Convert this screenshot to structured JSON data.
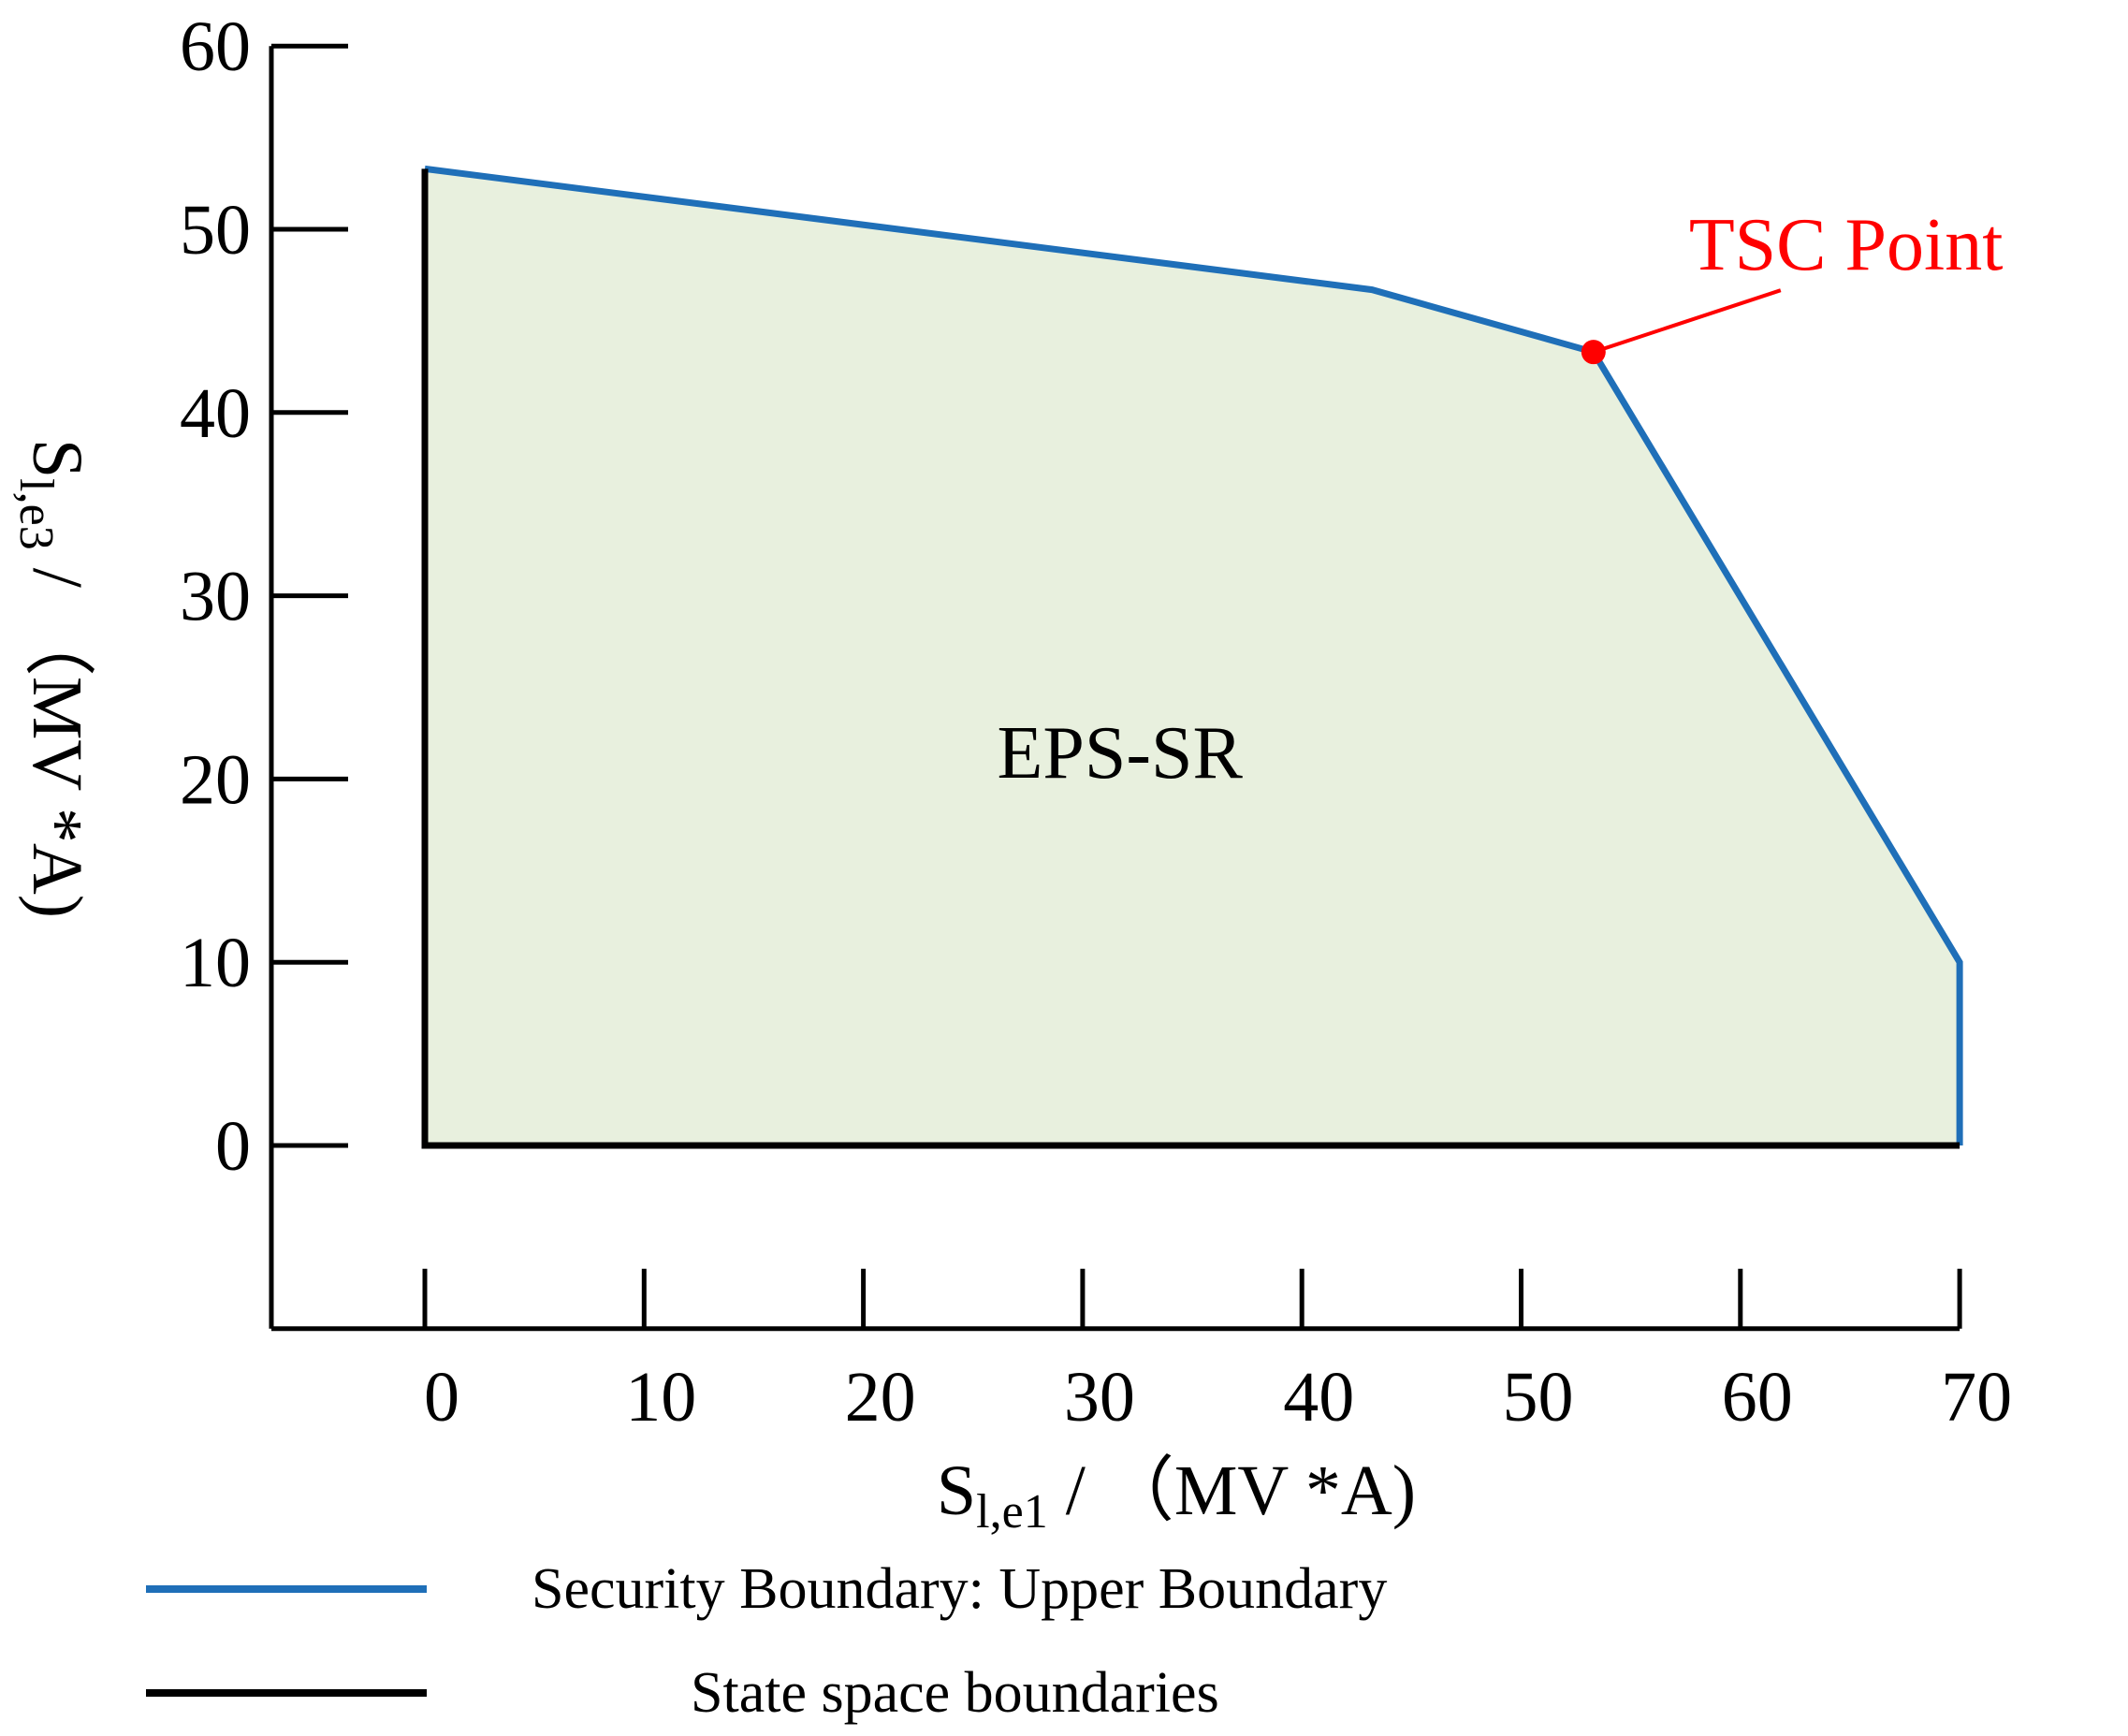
{
  "chart_data": {
    "type": "area",
    "title": "",
    "xlabel": {
      "main": "S",
      "sub": "l,e1",
      "rest": " / （MV *A)"
    },
    "ylabel": {
      "main": "S",
      "sub": "l,e3",
      "rest": " / （MV *A)"
    },
    "xlim": [
      -7,
      70
    ],
    "ylim": [
      -10,
      60
    ],
    "xticks": [
      0,
      10,
      20,
      30,
      40,
      50,
      60,
      70
    ],
    "yticks": [
      0,
      10,
      20,
      30,
      40,
      50,
      60
    ],
    "grid": false,
    "legend_position": "bottom",
    "fill_color": "#e8f0de",
    "series": [
      {
        "name": "Security Boundary: Upper Boundary",
        "color": "#1f6fb8",
        "x": [
          0,
          43.2,
          53.3,
          70,
          70
        ],
        "y": [
          53.3,
          46.7,
          43.3,
          10,
          0
        ]
      },
      {
        "name": "State space boundaries",
        "color": "#000000",
        "x": [
          0,
          0,
          70
        ],
        "y": [
          53.3,
          0,
          0
        ]
      }
    ],
    "annotations": [
      {
        "text": "EPS-SR",
        "x": 31.7,
        "y": 21.5,
        "type": "region"
      },
      {
        "text": "TSC Point",
        "x": 53.3,
        "y": 43.3,
        "type": "point",
        "color": "#ff0000"
      }
    ]
  }
}
